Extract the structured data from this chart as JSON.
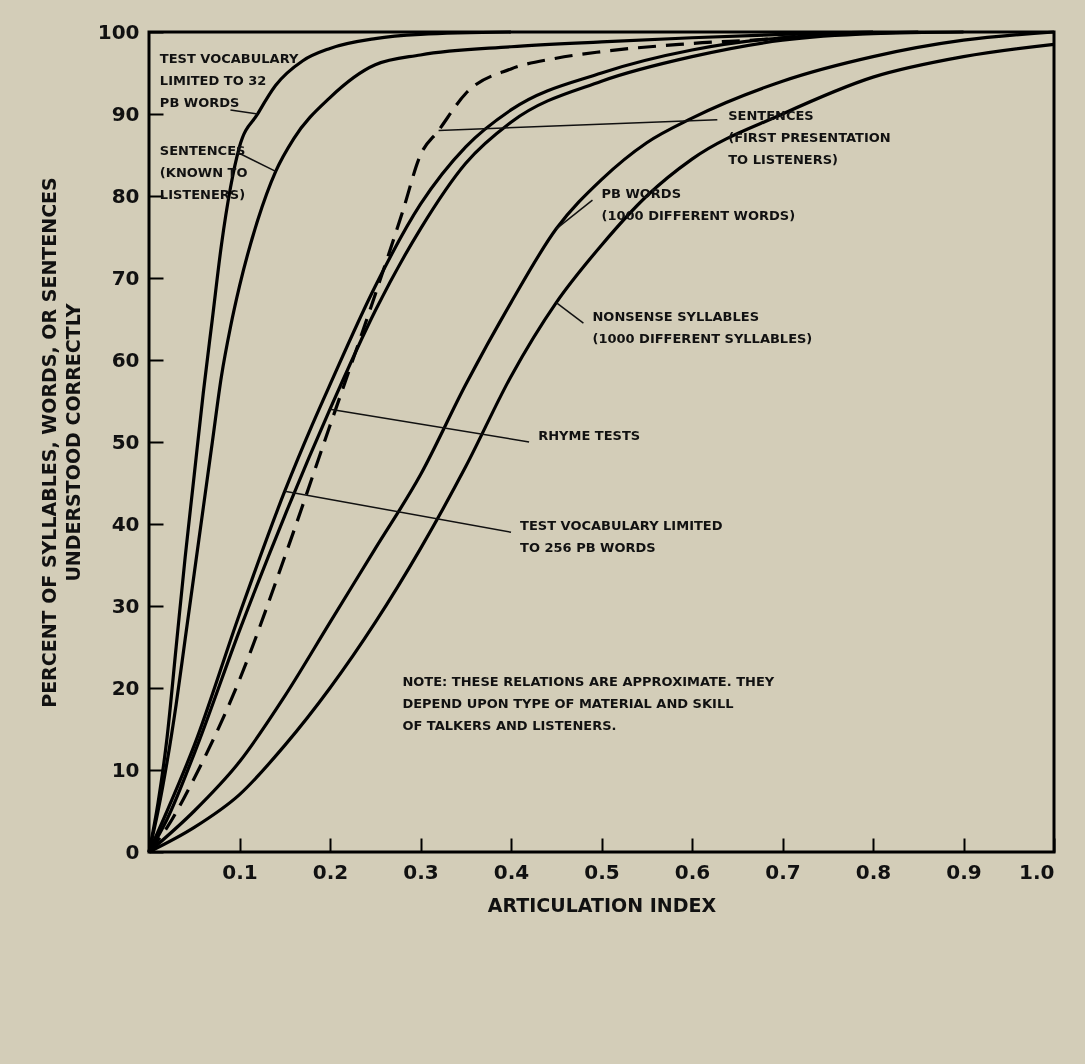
{
  "chart_data": {
    "type": "line",
    "xlabel": "ARTICULATION INDEX",
    "ylabel": "PERCENT OF SYLLABLES, WORDS, OR SENTENCES\nUNDERSTOOD CORRECTLY",
    "xlim": [
      0,
      1
    ],
    "ylim": [
      0,
      100
    ],
    "xticks": [
      0.1,
      0.2,
      0.3,
      0.4,
      0.5,
      0.6,
      0.7,
      0.8,
      0.9,
      {
        "value": 1,
        "label": "1.0"
      }
    ],
    "yticks": [
      0,
      10,
      20,
      30,
      40,
      50,
      60,
      70,
      80,
      90,
      100
    ],
    "grid": false,
    "series": [
      {
        "color": "#000000",
        "line_style": "solid",
        "x": [
          0,
          0.01,
          0.02,
          0.03,
          0.04,
          0.05,
          0.06,
          0.07,
          0.08,
          0.09,
          0.1,
          0.12,
          0.14,
          0.17,
          0.2,
          0.25,
          0.3,
          0.4
        ],
        "values": [
          0,
          6,
          14,
          25,
          36,
          46,
          56,
          65,
          74,
          81,
          86,
          90,
          93.5,
          96.5,
          98,
          99.2,
          99.7,
          100
        ]
      },
      {
        "color": "#000000",
        "line_style": "solid",
        "x": [
          0,
          0.01,
          0.02,
          0.03,
          0.04,
          0.05,
          0.06,
          0.07,
          0.08,
          0.09,
          0.1,
          0.12,
          0.14,
          0.16,
          0.2,
          0.25,
          0.3,
          0.4,
          0.5,
          0.6,
          0.7,
          0.8
        ],
        "values": [
          0,
          5,
          11,
          18,
          26,
          34,
          42,
          50,
          58,
          64,
          69,
          77,
          83,
          87,
          92,
          96,
          97.2,
          98.2,
          98.8,
          99.3,
          99.7,
          100
        ]
      },
      {
        "color": "#000000",
        "line_style": "dashed",
        "x": [
          0,
          0.02,
          0.05,
          0.1,
          0.15,
          0.2,
          0.25,
          0.28,
          0.3,
          0.32,
          0.35,
          0.4,
          0.45,
          0.5,
          0.6,
          0.7,
          0.75
        ],
        "values": [
          0,
          3,
          9,
          21,
          36,
          52,
          68,
          78,
          85,
          88,
          92.5,
          95.5,
          96.8,
          97.6,
          98.6,
          99.3,
          100
        ]
      },
      {
        "color": "#000000",
        "line_style": "solid",
        "x": [
          0,
          0.05,
          0.1,
          0.15,
          0.2,
          0.25,
          0.3,
          0.35,
          0.4,
          0.45,
          0.5,
          0.55,
          0.6,
          0.7,
          0.8,
          0.9,
          1
        ],
        "values": [
          0,
          5,
          11,
          19,
          28,
          37,
          46,
          57,
          67,
          76,
          82,
          86.5,
          89.5,
          94,
          97,
          99,
          100
        ]
      },
      {
        "color": "#000000",
        "line_style": "solid",
        "x": [
          0,
          0.05,
          0.1,
          0.15,
          0.2,
          0.25,
          0.3,
          0.35,
          0.4,
          0.45,
          0.5,
          0.55,
          0.6,
          0.7,
          0.8,
          0.9,
          1
        ],
        "values": [
          0,
          3,
          7,
          13,
          20,
          28,
          37,
          47,
          58,
          67,
          74,
          80,
          84.5,
          90,
          94.5,
          97,
          98.5
        ]
      },
      {
        "color": "#000000",
        "line_style": "solid",
        "x": [
          0,
          0.02,
          0.05,
          0.1,
          0.15,
          0.2,
          0.25,
          0.3,
          0.35,
          0.4,
          0.5,
          0.6,
          0.7,
          0.8,
          0.9
        ],
        "values": [
          0,
          4,
          12,
          27,
          41,
          54,
          66,
          76,
          84,
          89,
          94,
          97,
          99,
          99.8,
          100
        ]
      },
      {
        "color": "#000000",
        "line_style": "solid",
        "x": [
          0,
          0.02,
          0.05,
          0.1,
          0.15,
          0.18,
          0.2,
          0.25,
          0.3,
          0.35,
          0.4,
          0.5,
          0.6,
          0.7,
          0.85
        ],
        "values": [
          0,
          5,
          13,
          29,
          44,
          52,
          57,
          69,
          79,
          86,
          90.5,
          95,
          97.8,
          99.3,
          100
        ]
      }
    ],
    "annotations": [
      {
        "text": "TEST VOCABULARY\nLIMITED TO 32\nPB WORDS",
        "x": 0.12,
        "y": 90
      },
      {
        "text": "SENTENCES\n(KNOWN TO\nLISTENERS)",
        "x": 0.14,
        "y": 83
      },
      {
        "text": "SENTENCES\n(FIRST PRESENTATION\nTO LISTENERS)",
        "x": 0.32,
        "y": 88
      },
      {
        "text": "PB WORDS\n(1000 DIFFERENT WORDS)",
        "x": 0.45,
        "y": 76
      },
      {
        "text": "NONSENSE SYLLABLES\n(1000 DIFFERENT SYLLABLES)",
        "x": 0.45,
        "y": 67
      },
      {
        "text": "RHYME TESTS",
        "x": 0.2,
        "y": 54
      },
      {
        "text": "TEST VOCABULARY LIMITED\nTO 256 PB WORDS",
        "x": 0.15,
        "y": 44
      },
      "NOTE:  THESE RELATIONS ARE APPROXIMATE.  THEY\n           DEPEND UPON TYPE OF MATERIAL AND SKILL\n           OF TALKERS AND LISTENERS."
    ]
  }
}
